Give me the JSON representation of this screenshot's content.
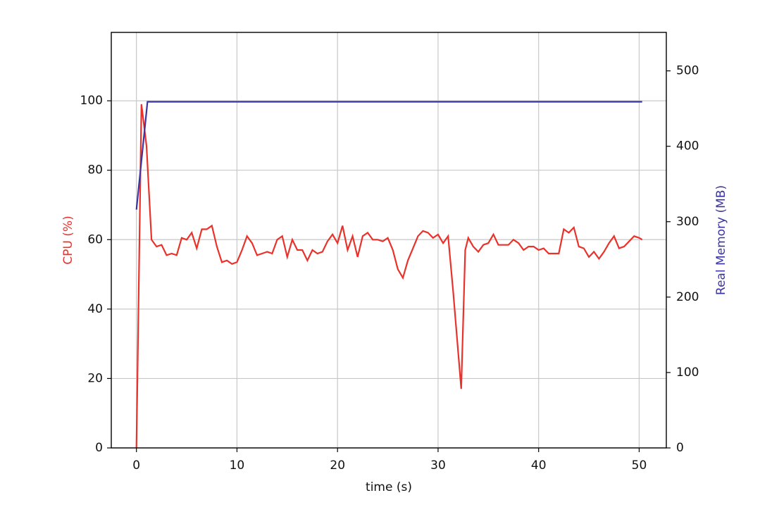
{
  "chart_data": {
    "type": "line",
    "xlabel": "time (s)",
    "ylabel": "CPU (%)",
    "y2label": "Real Memory (MB)",
    "xlim": [
      -2.5,
      52.7
    ],
    "ylim": [
      0,
      119.7
    ],
    "y2lim": [
      0,
      551
    ],
    "xticks": [
      0,
      10,
      20,
      30,
      40,
      50
    ],
    "yticks": [
      0,
      20,
      40,
      60,
      80,
      100
    ],
    "y2ticks": [
      0,
      100,
      200,
      300,
      400,
      500
    ],
    "grid": true,
    "series": [
      {
        "name": "CPU (%)",
        "color": "#e8322a",
        "axis": "y",
        "x": [
          0,
          0.5,
          1,
          1.5,
          2,
          2.5,
          3,
          3.5,
          4,
          4.5,
          5,
          5.5,
          6,
          6.5,
          7,
          7.5,
          8,
          8.5,
          9,
          9.5,
          10,
          10.5,
          11,
          11.5,
          12,
          12.5,
          13,
          13.5,
          14,
          14.5,
          15,
          15.5,
          16,
          16.5,
          17,
          17.5,
          18,
          18.5,
          19,
          19.5,
          20,
          20.5,
          21,
          21.5,
          22,
          22.5,
          23,
          23.5,
          24,
          24.5,
          25,
          25.5,
          26,
          26.5,
          27,
          27.5,
          28,
          28.5,
          29,
          29.5,
          30,
          30.5,
          31,
          31.5,
          32.3,
          32.7,
          33,
          33.5,
          34,
          34.5,
          35,
          35.5,
          36,
          36.5,
          37,
          37.5,
          38,
          38.5,
          39,
          39.5,
          40,
          40.5,
          41,
          41.5,
          42,
          42.5,
          43,
          43.5,
          44,
          44.5,
          45,
          45.5,
          46,
          46.5,
          47,
          47.5,
          48,
          48.5,
          49,
          49.5,
          50,
          50.3
        ],
        "values": [
          0,
          99,
          87,
          60,
          58,
          58.5,
          55.5,
          56,
          55.5,
          60.5,
          60,
          62,
          57.5,
          63,
          63,
          64,
          58,
          53.5,
          54,
          53,
          53.5,
          57,
          61,
          59,
          55.5,
          56,
          56.5,
          56,
          60,
          61,
          55,
          60,
          57,
          57,
          54,
          57,
          56,
          56.5,
          59.5,
          61.5,
          59,
          64,
          57,
          61,
          55,
          61,
          62,
          60,
          60,
          59.5,
          60.5,
          57,
          51.5,
          49,
          54,
          57.5,
          61,
          62.5,
          62,
          60.5,
          61.5,
          59,
          61,
          45,
          17,
          57,
          60.5,
          58,
          56.5,
          58.5,
          59,
          61.5,
          58.5,
          58.5,
          58.5,
          60,
          59,
          57,
          58,
          58,
          57,
          57.5,
          56,
          56,
          56,
          63,
          62,
          63.5,
          58,
          57.5,
          55,
          56.5,
          54.5,
          56.5,
          59,
          61,
          57.5,
          58,
          59.5,
          61,
          60.5,
          60
        ]
      },
      {
        "name": "Real Memory (MB)",
        "color": "#3a35a0",
        "axis": "y2",
        "x": [
          0,
          1.1,
          50.3
        ],
        "values": [
          316,
          459,
          459
        ]
      }
    ]
  }
}
